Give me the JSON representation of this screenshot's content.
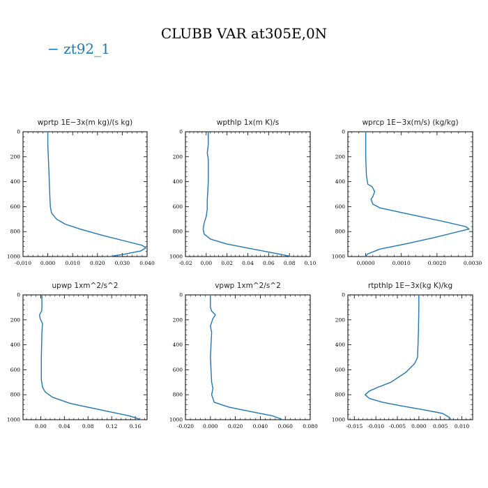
{
  "title": "CLUBB VAR at305E,0N",
  "legend": {
    "label": "− zt92_1",
    "color": "#1f77b4"
  },
  "chart_data": [
    {
      "type": "line",
      "title": "wprtp  1E−3x(m kg)/(s kg)",
      "xlim": [
        -0.01,
        0.04
      ],
      "xticks": [
        "-0.010",
        "0.000",
        "0.010",
        "0.020",
        "0.030",
        "0.040"
      ],
      "ylim": [
        1000,
        0
      ],
      "yticks": [
        "0",
        "200",
        "400",
        "600",
        "800",
        "1000"
      ],
      "series": [
        {
          "color": "#1f77b4",
          "x": [
            0.0,
            0.0,
            0.0002,
            0.0005,
            0.0008,
            0.001,
            0.0015,
            0.0035,
            0.007,
            0.013,
            0.022,
            0.032,
            0.038,
            0.0395,
            0.0375,
            0.031,
            0.025
          ],
          "y": [
            0,
            100,
            200,
            350,
            500,
            600,
            650,
            700,
            740,
            780,
            830,
            880,
            910,
            930,
            955,
            980,
            1000
          ]
        }
      ]
    },
    {
      "type": "line",
      "title": "wpthlp  1x(m K)/s",
      "xlim": [
        -0.02,
        0.1
      ],
      "xticks": [
        "-0.02",
        "0.00",
        "0.02",
        "0.04",
        "0.06",
        "0.08",
        "0.10"
      ],
      "ylim": [
        1000,
        0
      ],
      "yticks": [
        "0",
        "200",
        "400",
        "600",
        "800",
        "1000"
      ],
      "series": [
        {
          "color": "#1f77b4",
          "x": [
            0.002,
            0.002,
            0.001,
            0.002,
            0.002,
            0.001,
            0.001,
            0.0,
            -0.002,
            -0.003,
            -0.002,
            0.004,
            0.02,
            0.045,
            0.07,
            0.082
          ],
          "y": [
            0,
            100,
            170,
            220,
            400,
            550,
            620,
            680,
            730,
            780,
            820,
            860,
            900,
            940,
            980,
            1000
          ]
        }
      ]
    },
    {
      "type": "line",
      "title": "wprcp  1E−3x(m/s) (kg/kg)",
      "xlim": [
        -0.0005,
        0.003
      ],
      "xticks": [
        "0.0000",
        "0.0010",
        "0.0020",
        "0.0030"
      ],
      "ylim": [
        1000,
        0
      ],
      "yticks": [
        "0",
        "200",
        "400",
        "600",
        "800",
        "1000"
      ],
      "series": [
        {
          "color": "#1f77b4",
          "x": [
            0.0,
            0.0,
            2e-05,
            6e-05,
            0.00018,
            0.00025,
            0.0002,
            0.00015,
            0.0002,
            0.0004,
            0.0012,
            0.0022,
            0.0028,
            0.0029,
            0.0026,
            0.0019,
            0.0011,
            0.0004,
            5e-05,
            0.0
          ],
          "y": [
            0,
            200,
            350,
            420,
            440,
            480,
            520,
            540,
            580,
            610,
            660,
            720,
            760,
            780,
            800,
            850,
            900,
            940,
            980,
            1000
          ]
        }
      ]
    },
    {
      "type": "line",
      "title": "upwp  1xm^2/s^2",
      "xlim": [
        -0.03,
        0.18
      ],
      "xticks": [
        "0.00",
        "0.04",
        "0.08",
        "0.12",
        "0.16"
      ],
      "ylim": [
        1000,
        0
      ],
      "yticks": [
        "0",
        "200",
        "400",
        "600",
        "800",
        "1000"
      ],
      "series": [
        {
          "color": "#1f77b4",
          "x": [
            0.002,
            0.002,
            0.0015,
            -0.002,
            -0.001,
            0.003,
            0.002,
            0.001,
            0.001,
            0.003,
            0.008,
            0.02,
            0.05,
            0.1,
            0.15,
            0.17
          ],
          "y": [
            0,
            100,
            130,
            160,
            190,
            230,
            300,
            500,
            680,
            740,
            780,
            820,
            870,
            920,
            970,
            1000
          ]
        }
      ]
    },
    {
      "type": "line",
      "title": "vpwp  1xm^2/s^2",
      "xlim": [
        -0.02,
        0.08
      ],
      "xticks": [
        "-0.020",
        "0.000",
        "0.020",
        "0.040",
        "0.060",
        "0.080"
      ],
      "ylim": [
        1000,
        0
      ],
      "yticks": [
        "0",
        "200",
        "400",
        "600",
        "800",
        "1000"
      ],
      "series": [
        {
          "color": "#1f77b4",
          "x": [
            0.0,
            0.0,
            0.001,
            0.004,
            0.002,
            0.0,
            0.001,
            0.0,
            0.001,
            0.002,
            0.001,
            0.003,
            0.015,
            0.035,
            0.05,
            0.058
          ],
          "y": [
            0,
            100,
            130,
            160,
            190,
            250,
            300,
            500,
            700,
            750,
            800,
            860,
            900,
            940,
            970,
            1000
          ]
        }
      ]
    },
    {
      "type": "line",
      "title": "rtpthlp  1E−3x(kg K)/kg",
      "xlim": [
        -0.0165,
        0.0125
      ],
      "xticks": [
        "-0.015",
        "-0.010",
        "-0.005",
        "0.000",
        "0.005",
        "0.010"
      ],
      "ylim": [
        1000,
        0
      ],
      "yticks": [
        "0",
        "200",
        "400",
        "600",
        "800",
        "1000"
      ],
      "series": [
        {
          "color": "#1f77b4",
          "x": [
            0.0,
            0.0,
            -0.0001,
            -0.0003,
            -0.001,
            -0.003,
            -0.0065,
            -0.0095,
            -0.0115,
            -0.0125,
            -0.0115,
            -0.0085,
            -0.004,
            0.001,
            0.0055,
            0.007,
            0.0075
          ],
          "y": [
            0,
            100,
            300,
            500,
            550,
            620,
            700,
            740,
            770,
            800,
            830,
            860,
            890,
            920,
            950,
            980,
            1000
          ]
        }
      ]
    }
  ]
}
